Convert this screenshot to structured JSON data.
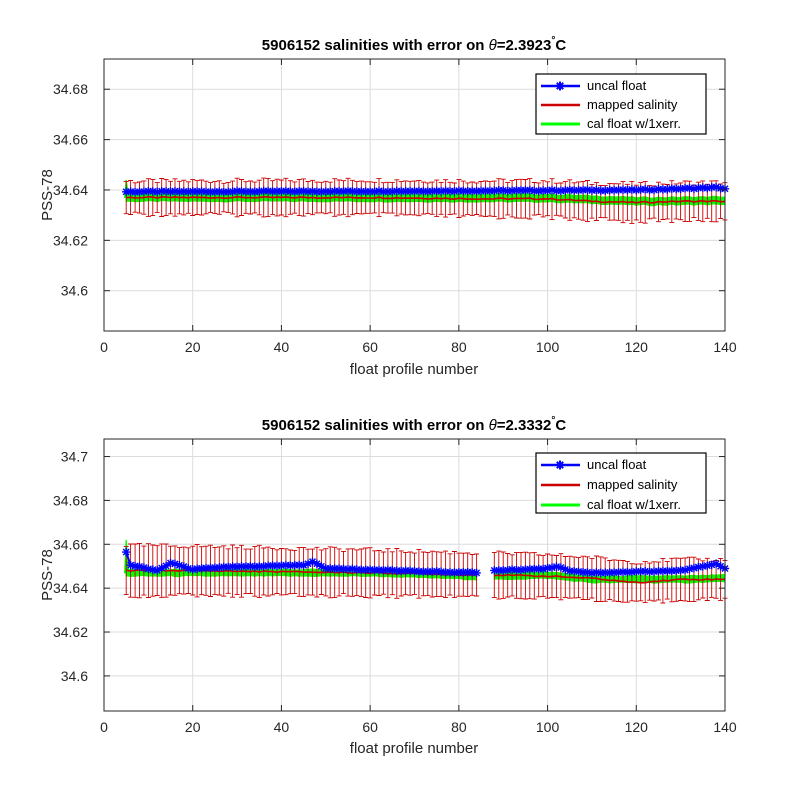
{
  "figure": {
    "panels": [
      {
        "title_prefix": "5906152 salinities with error on ",
        "title_theta": "θ",
        "title_value": "=2.3923",
        "title_degree": "°",
        "title_unit": "C",
        "xlabel": "float profile number",
        "ylabel": "PSS-78",
        "x_ticks": [
          "0",
          "20",
          "40",
          "60",
          "80",
          "100",
          "120",
          "140"
        ],
        "y_ticks": [
          "34.6",
          "34.62",
          "34.64",
          "34.66",
          "34.68"
        ]
      },
      {
        "title_prefix": "5906152 salinities with error on ",
        "title_theta": "θ",
        "title_value": "=2.3332",
        "title_degree": "°",
        "title_unit": "C",
        "xlabel": "float profile number",
        "ylabel": "PSS-78",
        "x_ticks": [
          "0",
          "20",
          "40",
          "60",
          "80",
          "100",
          "120",
          "140"
        ],
        "y_ticks": [
          "34.6",
          "34.62",
          "34.64",
          "34.66",
          "34.68",
          "34.7"
        ]
      }
    ],
    "legend": [
      "uncal float",
      "mapped salinity",
      "cal float w/1xerr."
    ]
  },
  "chart_data": [
    {
      "type": "line",
      "title": "5906152 salinities with error on θ=2.3923°C",
      "xlabel": "float profile number",
      "ylabel": "PSS-78",
      "xlim": [
        0,
        140
      ],
      "ylim": [
        34.584,
        34.692
      ],
      "grid": true,
      "legend_position": "top-right",
      "colors": {
        "uncal": "#0000ff",
        "mapped": "#cc0000",
        "cal": "#00ff00"
      },
      "x_range": [
        5,
        140
      ],
      "gaps": [],
      "uncal_breakpoints": [
        [
          5,
          34.6393
        ],
        [
          60,
          34.6395
        ],
        [
          100,
          34.6398
        ],
        [
          120,
          34.64
        ],
        [
          130,
          34.6405
        ],
        [
          138,
          34.641
        ],
        [
          140,
          34.6405
        ]
      ],
      "mapped_breakpoints": [
        [
          5,
          34.637
        ],
        [
          30,
          34.637
        ],
        [
          60,
          34.637
        ],
        [
          85,
          34.6365
        ],
        [
          100,
          34.6365
        ],
        [
          110,
          34.6355
        ],
        [
          120,
          34.635
        ],
        [
          130,
          34.6355
        ],
        [
          140,
          34.6355
        ]
      ],
      "cal_breakpoints": [
        [
          5,
          34.637
        ],
        [
          60,
          34.637
        ],
        [
          100,
          34.6368
        ],
        [
          120,
          34.6355
        ],
        [
          140,
          34.6358
        ]
      ],
      "cal_band_halfwidth": 0.0015,
      "error_halfwidth_start": 0.0065,
      "error_halfwidth_end": 0.0075,
      "cal_spike": [
        5,
        34.644
      ]
    },
    {
      "type": "line",
      "title": "5906152 salinities with error on θ=2.3332°C",
      "xlabel": "float profile number",
      "ylabel": "PSS-78",
      "xlim": [
        0,
        140
      ],
      "ylim": [
        34.584,
        34.708
      ],
      "grid": true,
      "legend_position": "top-right",
      "colors": {
        "uncal": "#0000ff",
        "mapped": "#cc0000",
        "cal": "#00ff00"
      },
      "x_range": [
        5,
        140
      ],
      "gaps": [
        [
          84,
          88
        ]
      ],
      "uncal_breakpoints": [
        [
          5,
          34.6565
        ],
        [
          6,
          34.6505
        ],
        [
          12,
          34.648
        ],
        [
          15,
          34.6515
        ],
        [
          20,
          34.6485
        ],
        [
          25,
          34.6495
        ],
        [
          45,
          34.6505
        ],
        [
          47,
          34.652
        ],
        [
          50,
          34.649
        ],
        [
          84,
          34.647
        ],
        [
          88,
          34.648
        ],
        [
          100,
          34.649
        ],
        [
          102,
          34.65
        ],
        [
          105,
          34.648
        ],
        [
          110,
          34.647
        ],
        [
          130,
          34.648
        ],
        [
          138,
          34.651
        ],
        [
          140,
          34.649
        ]
      ],
      "mapped_breakpoints": [
        [
          5,
          34.648
        ],
        [
          20,
          34.648
        ],
        [
          60,
          34.647
        ],
        [
          84,
          34.646
        ],
        [
          88,
          34.646
        ],
        [
          100,
          34.6455
        ],
        [
          110,
          34.6445
        ],
        [
          120,
          34.6425
        ],
        [
          130,
          34.644
        ],
        [
          140,
          34.644
        ]
      ],
      "cal_breakpoints": [
        [
          5,
          34.647
        ],
        [
          60,
          34.647
        ],
        [
          84,
          34.6455
        ],
        [
          88,
          34.6455
        ],
        [
          100,
          34.646
        ],
        [
          110,
          34.644
        ],
        [
          130,
          34.644
        ],
        [
          140,
          34.6445
        ]
      ],
      "cal_band_halfwidth": 0.0015,
      "error_halfwidth_start": 0.0115,
      "error_halfwidth_end": 0.009,
      "cal_spike": [
        5,
        34.662
      ]
    }
  ]
}
